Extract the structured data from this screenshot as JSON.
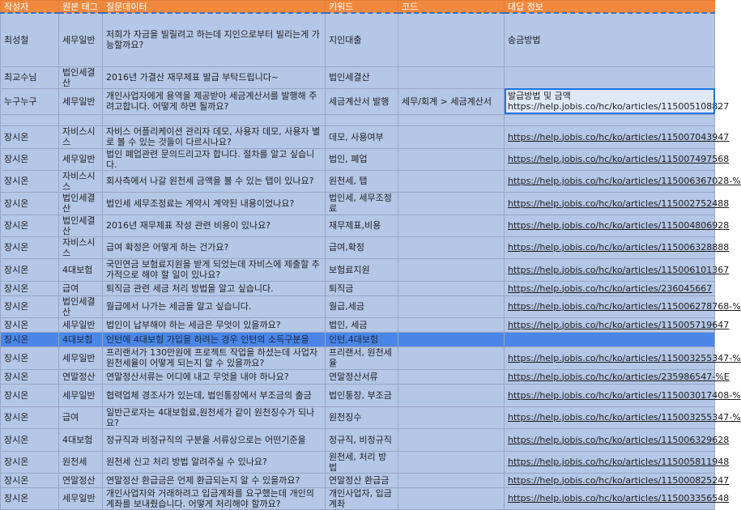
{
  "headers": [
    "작성자",
    "원본 태그",
    "질문데이터",
    "키워드",
    "코드",
    "대답 정보"
  ],
  "rows": [
    [
      "최성철",
      "세무일반",
      "저희가 자금을 빌릴려고 하는데 지인으로부터 빌리는게 가능할까요?",
      "지인대출",
      "",
      "송금방법"
    ],
    [
      "최교수님",
      "법인세결산",
      "2016년 가결산 재무제표 발급 부탁드립니다~",
      "법인세결산",
      "",
      ""
    ],
    [
      "누구누구",
      "세무일반",
      "개인사업자에게 용역을 제공받아 세금계산서를 발행해 주려고합니다. 어떻게 하면 될까요?",
      "세금계산서 발행",
      "세무/회계 > 세금계산서",
      "발급방법 및 금액 https://help.jobis.co/hc/ko/articles/115005108827"
    ],
    [
      "",
      "",
      "",
      "",
      "",
      ""
    ],
    [
      "장시온",
      "자비스시스",
      "자비스 어플리케이션 관리자 데모, 사용자 데모, 사용자 별로 볼 수 있는 것들이 다르시나요?",
      "데모, 사용여부",
      "",
      "https://help.jobis.co/hc/ko/articles/115007043947"
    ],
    [
      "장시온",
      "세무일반",
      "법인 폐업관련 문의드리고자 합니다. 절차를 알고 싶습니다.",
      "법인, 폐업",
      "",
      "https://help.jobis.co/hc/ko/articles/115007497568"
    ],
    [
      "장시온",
      "자비스시스",
      "회사측에서 나갈 원천세 금액을 볼 수 있는 탭이 있나요?",
      "원천세, 탭",
      "",
      "https://help.jobis.co/hc/ko/articles/115006367028-%"
    ],
    [
      "장시온",
      "법인세결산",
      "법인세 세무조정료는 계약시 계약된 내용이었나요?",
      "법인세, 세무조정료",
      "",
      "https://help.jobis.co/hc/ko/articles/115002752488"
    ],
    [
      "장시온",
      "법인세결산",
      "2016년 재무제표 작성 관련 비용이 있나요?",
      "재무제표,비용",
      "",
      "https://help.jobis.co/hc/ko/articles/115004806928"
    ],
    [
      "장시온",
      "자비스시스",
      "급여 확정은 어떻게 하는 건가요?",
      "급여,확정",
      "",
      "https://help.jobis.co/hc/ko/articles/115006328888"
    ],
    [
      "장시온",
      "4대보험",
      "국민연금 보험료지원을 받게 되었는데 자비스에 제출할 추가적으로 해야 할 일이 있나요?",
      "보험료지원",
      "",
      "https://help.jobis.co/hc/ko/articles/115006101367"
    ],
    [
      "장시온",
      "급여",
      "퇴직금 관련 세금 처리 방법을 알고 싶습니다.",
      "퇴직금",
      "",
      "https://help.jobis.co/hc/ko/articles/236045667"
    ],
    [
      "장시온",
      "법인세결산",
      "월급에서 나가는 세금을 알고 싶습니다.",
      "월급,세금",
      "",
      "https://help.jobis.co/hc/ko/articles/115006278768-%"
    ],
    [
      "장시온",
      "세무일반",
      "법인이 납부해야 하는 세금은 무엇이 있을까요?",
      "법인, 세금",
      "",
      "https://help.jobis.co/hc/ko/articles/115005719647"
    ],
    [
      "장시온",
      "4대보험",
      "인턴에 4대보험 가입을 하려는 경우 인턴의 소득구분을",
      "인턴,4대보험",
      "",
      ""
    ],
    [
      "장시온",
      "세무일반",
      "프리랜서가 130만원에 프로젝트 작업을 하셨는데 사업자 원천세율이 어떻게 되는지 알 수 있을까요?",
      "프리랜서, 원천세율",
      "",
      "https://help.jobis.co/hc/ko/articles/115003255347-%"
    ],
    [
      "장시온",
      "연말정산",
      "연말정산서류는 어디에 내고 무엇을 내야 하나요?",
      "연말정산서류",
      "",
      "https://help.jobis.co/hc/ko/articles/235986547-%E"
    ],
    [
      "장시온",
      "세무일반",
      "협력업체 경조사가 있는데, 법인통장에서 부조금의 출금",
      "법인통장, 부조금",
      "",
      "https://help.jobis.co/hc/ko/articles/115003017408-%"
    ],
    [
      "장시온",
      "급여",
      "일반근로자는 4대보험료,원천세가 같이 원천징수가 되나요?",
      "원천징수",
      "",
      "https://help.jobis.co/hc/ko/articles/115003255347-%"
    ],
    [
      "장시온",
      "4대보험",
      "정규직과 비정규직의 구분을 서류상으로는 어떤기준을",
      "정규직, 비정규직",
      "",
      "https://help.jobis.co/hc/ko/articles/115006329628"
    ],
    [
      "장시온",
      "원천세",
      "원천세 신고 처리 방법 알려주실 수 있나요?",
      "원천세, 처리 방법",
      "",
      "https://help.jobis.co/hc/ko/articles/115005811948"
    ],
    [
      "장시온",
      "연말정산",
      "연말정산 환급금은 언제 환급되는지 알 수 있을까요?",
      "연말정산 환급금",
      "",
      "https://help.jobis.co/hc/ko/articles/115000825247"
    ],
    [
      "장시온",
      "세무일반",
      "개인사업자와 거래하려고 입금계좌를 요구했는데 개인의 계좌를 보내줬습니다. 어떻게 처리해야 할까요?",
      "개인사업자, 입금계좌",
      "",
      "https://help.jobis.co/hc/ko/articles/115003356548"
    ]
  ]
}
